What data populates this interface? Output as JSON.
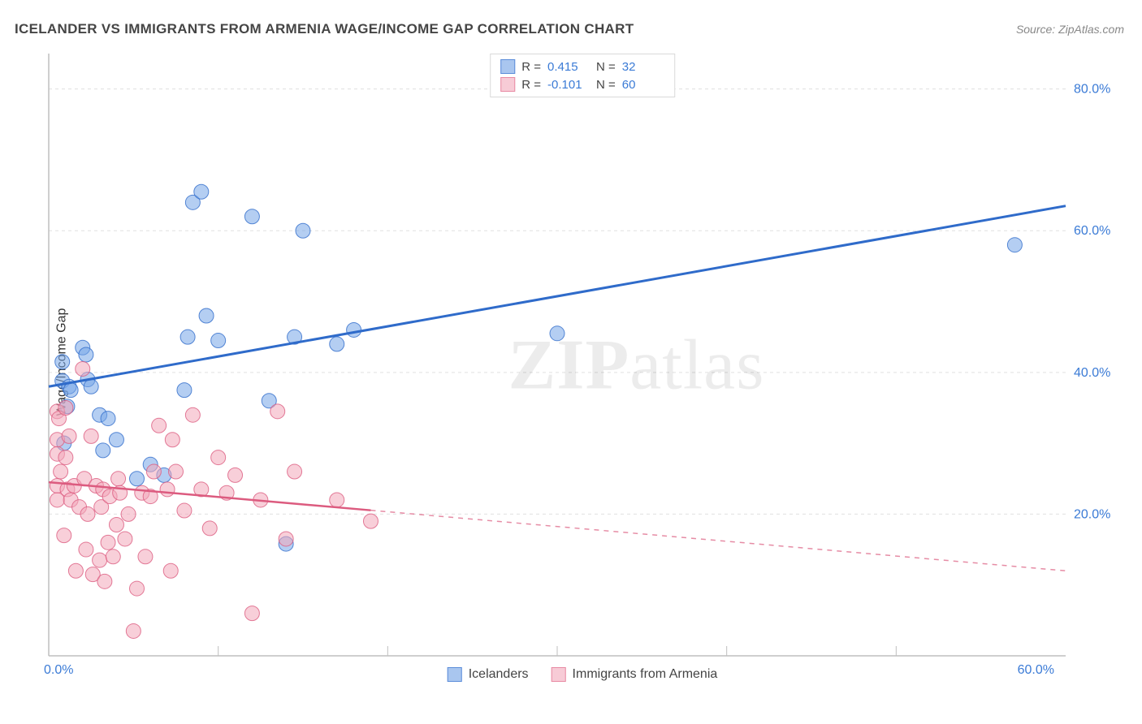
{
  "title": "ICELANDER VS IMMIGRANTS FROM ARMENIA WAGE/INCOME GAP CORRELATION CHART",
  "source": "Source: ZipAtlas.com",
  "ylabel": "Wage/Income Gap",
  "watermark_a": "ZIP",
  "watermark_b": "atlas",
  "chart": {
    "type": "scatter",
    "xlim": [
      0,
      60
    ],
    "ylim": [
      0,
      85
    ],
    "x_ticks": [
      0,
      60
    ],
    "x_tick_labels": [
      "0.0%",
      "60.0%"
    ],
    "y_ticks": [
      20,
      40,
      60,
      80
    ],
    "y_tick_labels": [
      "20.0%",
      "40.0%",
      "60.0%",
      "80.0%"
    ],
    "grid_color": "#e0e0e0",
    "grid_dash": "4 4",
    "axis_color": "#bfbfbf",
    "background_color": "#ffffff",
    "tick_label_color": "#3b7bd6",
    "x_minor_step": 10,
    "marker_radius": 9,
    "marker_opacity": 0.55,
    "series": [
      {
        "name": "Icelanders",
        "color_fill": "#77a5e8",
        "color_stroke": "#2f6bca",
        "trend": {
          "start": [
            0,
            38
          ],
          "end": [
            60,
            63.5
          ],
          "solid_until": 60,
          "color": "#2f6bca",
          "width": 3
        },
        "stats": {
          "R": "0.415",
          "N": "32"
        },
        "points": [
          [
            0.8,
            41.5
          ],
          [
            0.8,
            38.8
          ],
          [
            0.9,
            30
          ],
          [
            1.1,
            35.2
          ],
          [
            1.2,
            38
          ],
          [
            1.3,
            37.5
          ],
          [
            2,
            43.5
          ],
          [
            2.2,
            42.5
          ],
          [
            2.3,
            39
          ],
          [
            2.5,
            38
          ],
          [
            3,
            34
          ],
          [
            3.2,
            29
          ],
          [
            3.5,
            33.5
          ],
          [
            4,
            30.5
          ],
          [
            5.2,
            25
          ],
          [
            6,
            27
          ],
          [
            6.8,
            25.5
          ],
          [
            8,
            37.5
          ],
          [
            8.2,
            45
          ],
          [
            8.5,
            64
          ],
          [
            9,
            65.5
          ],
          [
            9.3,
            48
          ],
          [
            10,
            44.5
          ],
          [
            12,
            62
          ],
          [
            13,
            36
          ],
          [
            14,
            15.8
          ],
          [
            14.5,
            45
          ],
          [
            15,
            60
          ],
          [
            17,
            44
          ],
          [
            18,
            46
          ],
          [
            30,
            45.5
          ],
          [
            57,
            58
          ]
        ]
      },
      {
        "name": "Immigrants from Armenia",
        "color_fill": "#f2a7ba",
        "color_stroke": "#dc5b7f",
        "trend": {
          "start": [
            0,
            24.5
          ],
          "end": [
            60,
            12
          ],
          "solid_until": 19,
          "color": "#dc5b7f",
          "width": 2.5
        },
        "stats": {
          "R": "-0.101",
          "N": "60"
        },
        "points": [
          [
            0.5,
            34.5
          ],
          [
            0.5,
            30.5
          ],
          [
            0.5,
            28.5
          ],
          [
            0.5,
            24
          ],
          [
            0.5,
            22
          ],
          [
            0.6,
            33.5
          ],
          [
            0.7,
            26
          ],
          [
            0.9,
            17
          ],
          [
            1,
            35
          ],
          [
            1,
            28
          ],
          [
            1.1,
            23.5
          ],
          [
            1.2,
            31
          ],
          [
            1.3,
            22
          ],
          [
            1.5,
            24
          ],
          [
            1.6,
            12
          ],
          [
            1.8,
            21
          ],
          [
            2,
            40.5
          ],
          [
            2.1,
            25
          ],
          [
            2.2,
            15
          ],
          [
            2.3,
            20
          ],
          [
            2.5,
            31
          ],
          [
            2.6,
            11.5
          ],
          [
            2.8,
            24
          ],
          [
            3,
            13.5
          ],
          [
            3.1,
            21
          ],
          [
            3.2,
            23.5
          ],
          [
            3.3,
            10.5
          ],
          [
            3.5,
            16
          ],
          [
            3.6,
            22.5
          ],
          [
            3.8,
            14
          ],
          [
            4,
            18.5
          ],
          [
            4.1,
            25
          ],
          [
            4.2,
            23
          ],
          [
            4.5,
            16.5
          ],
          [
            4.7,
            20
          ],
          [
            5,
            3.5
          ],
          [
            5.2,
            9.5
          ],
          [
            5.5,
            23
          ],
          [
            5.7,
            14
          ],
          [
            6,
            22.5
          ],
          [
            6.2,
            26
          ],
          [
            6.5,
            32.5
          ],
          [
            7,
            23.5
          ],
          [
            7.2,
            12
          ],
          [
            7.3,
            30.5
          ],
          [
            7.5,
            26
          ],
          [
            8,
            20.5
          ],
          [
            8.5,
            34
          ],
          [
            9,
            23.5
          ],
          [
            9.5,
            18
          ],
          [
            10,
            28
          ],
          [
            10.5,
            23
          ],
          [
            11,
            25.5
          ],
          [
            12,
            6
          ],
          [
            12.5,
            22
          ],
          [
            13.5,
            34.5
          ],
          [
            14,
            16.5
          ],
          [
            14.5,
            26
          ],
          [
            17,
            22
          ],
          [
            19,
            19
          ]
        ]
      }
    ]
  },
  "legend_top": {
    "rows": [
      {
        "sw_fill": "#a9c6ef",
        "sw_stroke": "#5b8dd9",
        "r_label": "R =",
        "r_val": "0.415",
        "n_label": "N =",
        "n_val": "32"
      },
      {
        "sw_fill": "#f7cbd6",
        "sw_stroke": "#e88aa3",
        "r_label": "R =",
        "r_val": "-0.101",
        "n_label": "N =",
        "n_val": "60"
      }
    ]
  },
  "legend_bottom": {
    "items": [
      {
        "sw_fill": "#a9c6ef",
        "sw_stroke": "#5b8dd9",
        "label": "Icelanders"
      },
      {
        "sw_fill": "#f7cbd6",
        "sw_stroke": "#e88aa3",
        "label": "Immigrants from Armenia"
      }
    ]
  }
}
